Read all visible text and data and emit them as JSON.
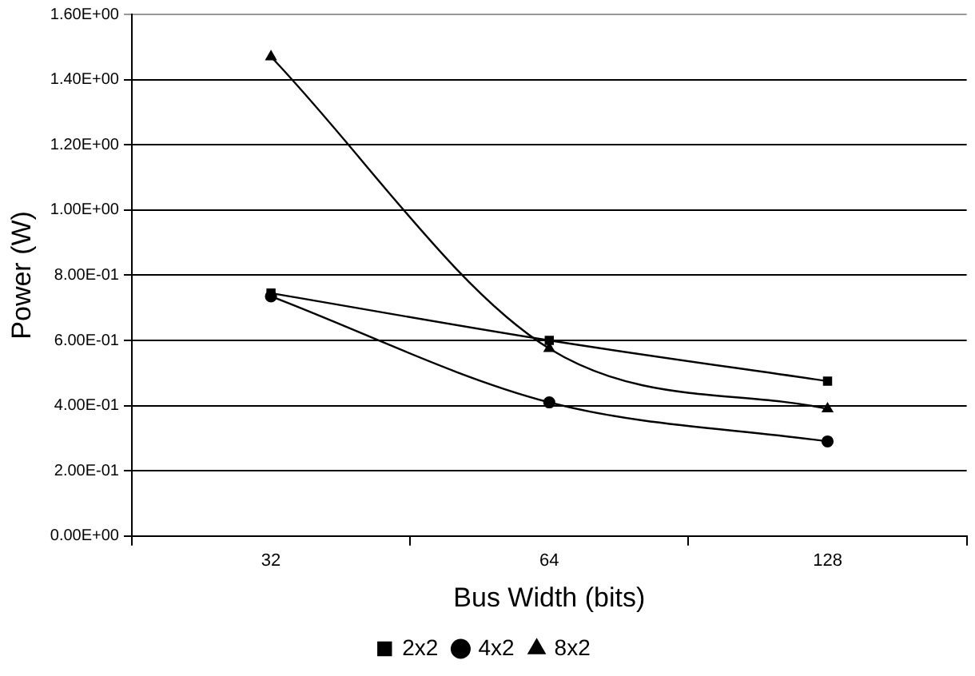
{
  "chart_data": {
    "type": "line",
    "xlabel": "Bus Width (bits)",
    "ylabel": "Power (W)",
    "categories": [
      "32",
      "64",
      "128"
    ],
    "series": [
      {
        "name": "2x2",
        "color": "#000000",
        "marker": "square",
        "values": [
          0.745,
          0.6,
          0.475
        ]
      },
      {
        "name": "4x2",
        "color": "#000000",
        "marker": "circle",
        "values": [
          0.735,
          0.41,
          0.29
        ]
      },
      {
        "name": "8x2",
        "color": "#000000",
        "marker": "triangle",
        "values": [
          1.47,
          0.575,
          0.39
        ]
      }
    ],
    "ylim": [
      0,
      1.6
    ],
    "yticks": [
      {
        "value": 0,
        "label": "0.00E+00"
      },
      {
        "value": 0.2,
        "label": "2.00E-01"
      },
      {
        "value": 0.4,
        "label": "4.00E-01"
      },
      {
        "value": 0.6,
        "label": "6.00E-01"
      },
      {
        "value": 0.8,
        "label": "8.00E-01"
      },
      {
        "value": 1.0,
        "label": "1.00E+00"
      },
      {
        "value": 1.2,
        "label": "1.20E+00"
      },
      {
        "value": 1.4,
        "label": "1.40E+00"
      },
      {
        "value": 1.6,
        "label": "1.60E+00"
      }
    ],
    "grid": "y",
    "legend": "bottom",
    "line_style": "solid"
  }
}
